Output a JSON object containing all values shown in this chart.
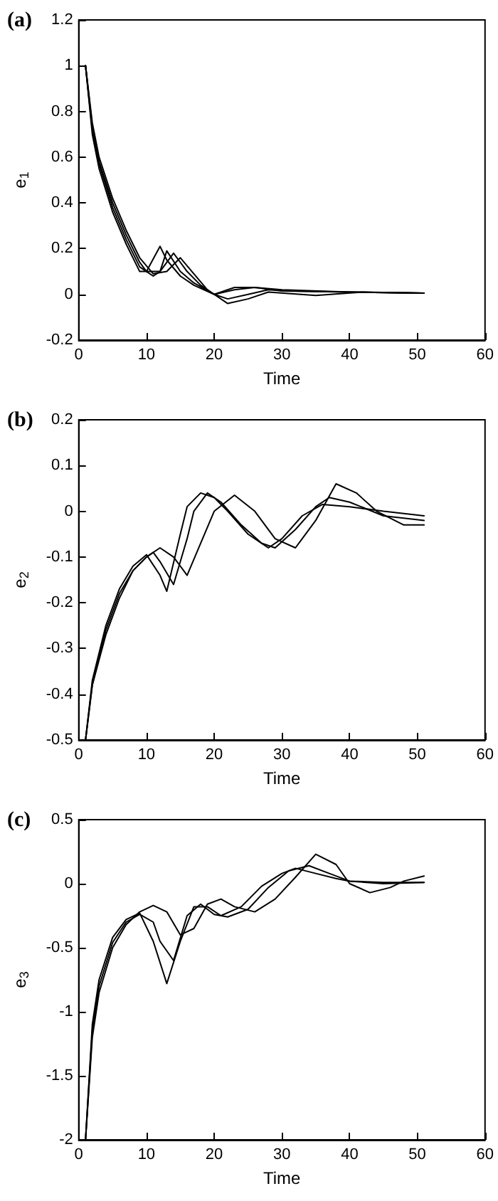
{
  "chart_data": [
    {
      "type": "line",
      "title": "(a)",
      "xlabel": "Time",
      "ylabel": "e$_{1}$",
      "xlim": [
        0,
        60
      ],
      "xticks": [
        0,
        10,
        20,
        30,
        40,
        50,
        60
      ],
      "ylim": [
        -0.2,
        1.2
      ],
      "yticks": [
        -0.2,
        0,
        0.2,
        0.4,
        0.6,
        0.8,
        1,
        1.2
      ],
      "grid": false,
      "marker": "none",
      "line_style": "solid",
      "series": [
        {
          "color": "#000000",
          "x": [
            1,
            2,
            3,
            5,
            7,
            9,
            10,
            12,
            13,
            15,
            17,
            20,
            23,
            26,
            30,
            40,
            51
          ],
          "values": [
            1,
            0.7,
            0.55,
            0.36,
            0.22,
            0.1,
            0.1,
            0.21,
            0.15,
            0.08,
            0.04,
            0,
            0.03,
            0.03,
            0.015,
            0.01,
            0.005
          ]
        },
        {
          "color": "#000000",
          "x": [
            1,
            2,
            3,
            5,
            7,
            9,
            10,
            12,
            13,
            15,
            17,
            20,
            23,
            26,
            30,
            40,
            51
          ],
          "values": [
            1,
            0.72,
            0.57,
            0.38,
            0.24,
            0.12,
            0.1,
            0.1,
            0.19,
            0.1,
            0.05,
            0,
            0.02,
            0.03,
            0.02,
            0.01,
            0.005
          ]
        },
        {
          "color": "#000000",
          "x": [
            1,
            2,
            3,
            5,
            7,
            9,
            10,
            11,
            12,
            14,
            16,
            18,
            20,
            22,
            25,
            28,
            32,
            40,
            51
          ],
          "values": [
            1,
            0.73,
            0.58,
            0.4,
            0.26,
            0.14,
            0.1,
            0.08,
            0.1,
            0.18,
            0.1,
            0.04,
            0,
            -0.02,
            0,
            0.02,
            0.015,
            0.01,
            0.005
          ]
        },
        {
          "color": "#000000",
          "x": [
            1,
            2,
            3,
            5,
            7,
            9,
            11,
            13,
            15,
            17,
            19,
            22,
            25,
            28,
            35,
            42,
            51
          ],
          "values": [
            1,
            0.75,
            0.6,
            0.42,
            0.28,
            0.16,
            0.09,
            0.1,
            0.16,
            0.09,
            0.02,
            -0.04,
            -0.02,
            0.01,
            -0.005,
            0.01,
            0.005
          ]
        }
      ]
    },
    {
      "type": "line",
      "title": "(b)",
      "xlabel": "Time",
      "ylabel": "e$_{2}$",
      "xlim": [
        0,
        60
      ],
      "xticks": [
        0,
        10,
        20,
        30,
        40,
        50,
        60
      ],
      "ylim": [
        -0.5,
        0.2
      ],
      "yticks": [
        -0.5,
        -0.4,
        -0.3,
        -0.2,
        -0.1,
        0,
        0.1,
        0.2
      ],
      "grid": false,
      "marker": "none",
      "line_style": "solid",
      "series": [
        {
          "color": "#000000",
          "x": [
            1,
            2,
            4,
            6,
            8,
            10,
            12,
            13,
            15,
            16,
            18,
            20,
            22,
            25,
            28,
            30,
            33,
            36,
            40,
            45,
            51
          ],
          "values": [
            -0.5,
            -0.37,
            -0.25,
            -0.17,
            -0.12,
            -0.095,
            -0.14,
            -0.175,
            -0.05,
            0.01,
            0.04,
            0.03,
            0,
            -0.05,
            -0.08,
            -0.06,
            -0.01,
            0.015,
            0.01,
            0,
            -0.01
          ]
        },
        {
          "color": "#000000",
          "x": [
            1,
            2,
            4,
            6,
            8,
            10,
            11,
            12,
            14,
            16,
            17,
            19,
            21,
            24,
            27,
            29,
            32,
            35,
            37,
            40,
            45,
            51
          ],
          "values": [
            -0.5,
            -0.38,
            -0.26,
            -0.18,
            -0.13,
            -0.1,
            -0.09,
            -0.11,
            -0.16,
            -0.06,
            0.0,
            0.04,
            0.02,
            -0.03,
            -0.07,
            -0.08,
            -0.04,
            0.01,
            0.03,
            0.02,
            -0.01,
            -0.02
          ]
        },
        {
          "color": "#000000",
          "x": [
            1,
            2,
            4,
            6,
            8,
            10,
            12,
            14,
            16,
            18,
            20,
            23,
            26,
            29,
            32,
            35,
            38,
            41,
            44,
            48,
            51
          ],
          "values": [
            -0.5,
            -0.38,
            -0.27,
            -0.19,
            -0.13,
            -0.1,
            -0.08,
            -0.1,
            -0.14,
            -0.07,
            0,
            0.035,
            0,
            -0.06,
            -0.08,
            -0.02,
            0.06,
            0.04,
            0,
            -0.03,
            -0.03
          ]
        }
      ]
    },
    {
      "type": "line",
      "title": "(c)",
      "xlabel": "Time",
      "ylabel": "e$_{3}$",
      "xlim": [
        0,
        60
      ],
      "xticks": [
        0,
        10,
        20,
        30,
        40,
        50,
        60
      ],
      "ylim": [
        -2,
        0.5
      ],
      "yticks": [
        -2,
        -1.5,
        -1,
        -0.5,
        0,
        0.5
      ],
      "grid": false,
      "marker": "none",
      "line_style": "solid",
      "series": [
        {
          "color": "#000000",
          "x": [
            1,
            2,
            3,
            5,
            7,
            9,
            11,
            13,
            15,
            17,
            19,
            21,
            24,
            27,
            30,
            32,
            35,
            38,
            40,
            45,
            51
          ],
          "values": [
            -2,
            -1.1,
            -0.75,
            -0.42,
            -0.28,
            -0.23,
            -0.45,
            -0.78,
            -0.45,
            -0.18,
            -0.18,
            -0.25,
            -0.18,
            -0.02,
            0.08,
            0.12,
            0.08,
            0.04,
            0.02,
            0.01,
            0.01
          ]
        },
        {
          "color": "#000000",
          "x": [
            1,
            2,
            3,
            5,
            7,
            9,
            11,
            12,
            14,
            16,
            18,
            20,
            22,
            25,
            28,
            31,
            34,
            37,
            40,
            45,
            51
          ],
          "values": [
            -2,
            -1.15,
            -0.8,
            -0.46,
            -0.3,
            -0.24,
            -0.3,
            -0.45,
            -0.6,
            -0.25,
            -0.16,
            -0.24,
            -0.26,
            -0.2,
            -0.03,
            0.1,
            0.14,
            0.08,
            0.02,
            0,
            0.01
          ]
        },
        {
          "color": "#000000",
          "x": [
            1,
            2,
            3,
            5,
            7,
            9,
            11,
            13,
            15,
            17,
            19,
            21,
            23,
            26,
            29,
            32,
            35,
            38,
            40,
            43,
            46,
            48,
            51
          ],
          "values": [
            -2,
            -1.2,
            -0.85,
            -0.5,
            -0.32,
            -0.22,
            -0.17,
            -0.22,
            -0.4,
            -0.35,
            -0.16,
            -0.12,
            -0.18,
            -0.22,
            -0.12,
            0.05,
            0.23,
            0.15,
            0,
            -0.07,
            -0.03,
            0.02,
            0.06
          ]
        }
      ]
    }
  ]
}
